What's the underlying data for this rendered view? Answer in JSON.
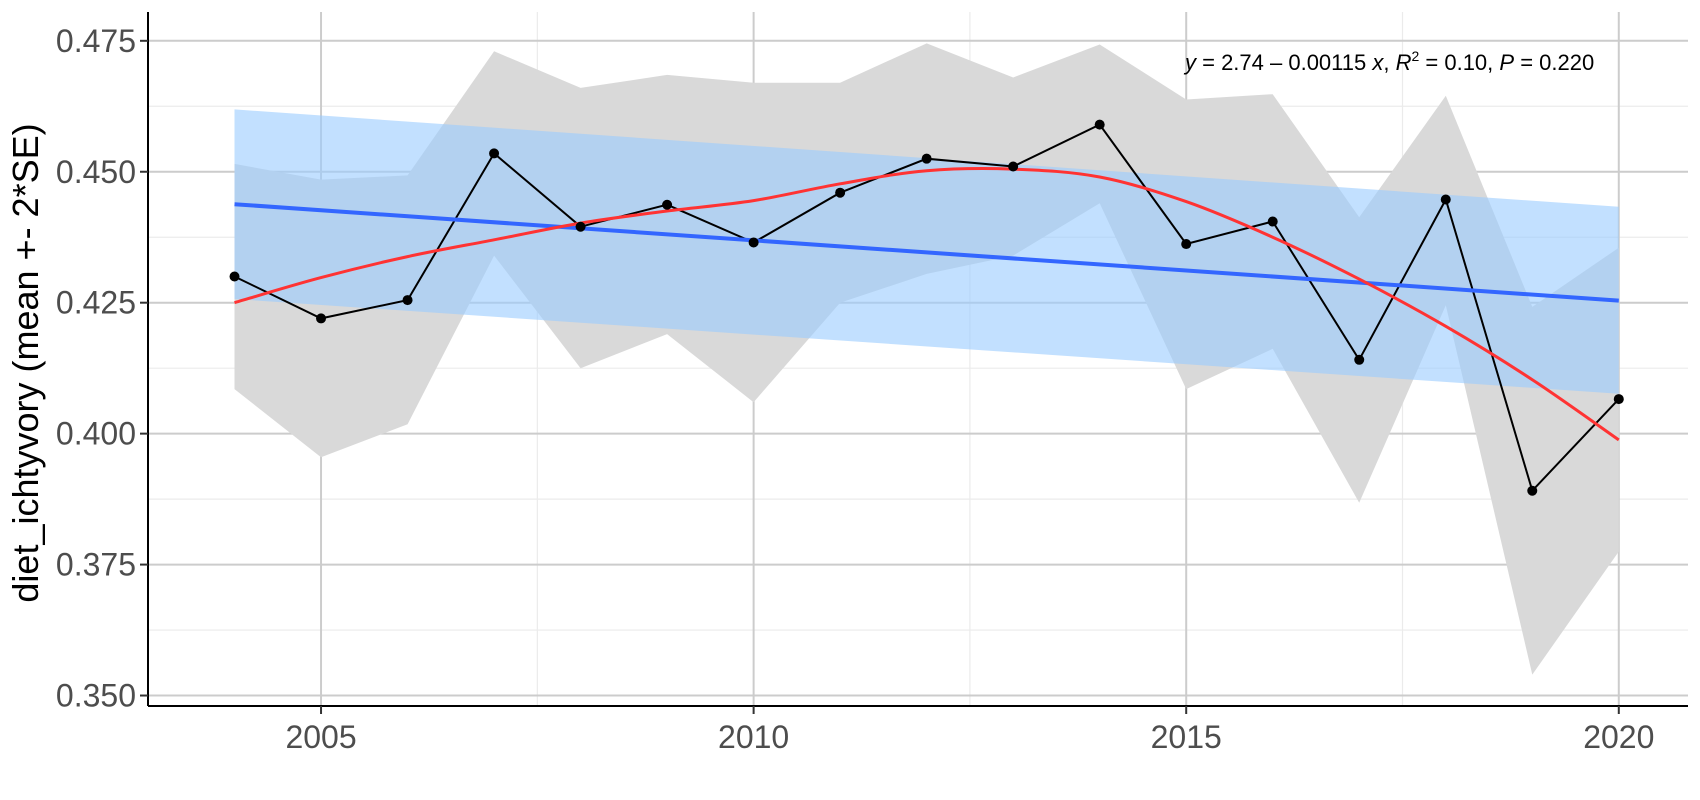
{
  "chart_data": {
    "type": "line",
    "title": "",
    "xlabel": "",
    "ylabel": "diet_ichtyvory (mean +- 2*SE)",
    "xlim": [
      2003.0,
      2020.8
    ],
    "ylim": [
      0.348,
      0.4805
    ],
    "x_ticks": [
      2005,
      2010,
      2015,
      2020
    ],
    "x_tick_labels": [
      "2005",
      "2010",
      "2015",
      "2020"
    ],
    "y_ticks": [
      0.35,
      0.375,
      0.4,
      0.425,
      0.45,
      0.475
    ],
    "y_tick_labels": [
      "0.350",
      "0.375",
      "0.400",
      "0.425",
      "0.450",
      "0.475"
    ],
    "grid": true,
    "annotation": {
      "y_var": "y",
      "equation_rhs": " = 2.74 – 0.00115 ",
      "x_var": "x",
      "sep": ", ",
      "r_var": "R",
      "r_exp": "2",
      "r2_text": " = 0.10, ",
      "p_var": "P",
      "p_text": " = 0.220"
    },
    "series": [
      {
        "kind": "mean",
        "x": [
          2004,
          2005,
          2006,
          2007,
          2008,
          2009,
          2010,
          2011,
          2012,
          2013,
          2014,
          2015,
          2016,
          2017,
          2018,
          2019,
          2020
        ],
        "values": [
          0.43,
          0.422,
          0.4255,
          0.4535,
          0.4395,
          0.4437,
          0.4365,
          0.446,
          0.4525,
          0.451,
          0.459,
          0.4362,
          0.4405,
          0.4141,
          0.4447,
          0.3891,
          0.4066
        ],
        "lower": [
          0.4085,
          0.3955,
          0.4018,
          0.434,
          0.4125,
          0.419,
          0.406,
          0.425,
          0.4305,
          0.434,
          0.444,
          0.4085,
          0.4162,
          0.3868,
          0.4245,
          0.354,
          0.3775
        ],
        "upper": [
          0.4515,
          0.4485,
          0.4493,
          0.473,
          0.466,
          0.4685,
          0.467,
          0.467,
          0.4745,
          0.468,
          0.4743,
          0.4638,
          0.4648,
          0.4413,
          0.4645,
          0.4242,
          0.4355
        ],
        "color": "#000000",
        "band_color": "#d9d9d9"
      },
      {
        "kind": "linear-fit",
        "x": [
          2004,
          2020
        ],
        "values": [
          0.4438,
          0.4254
        ],
        "lower": [
          0.4257,
          0.4076
        ],
        "upper": [
          0.4619,
          0.4433
        ],
        "color": "#3366ff",
        "band_color": "#99ccff"
      },
      {
        "kind": "smooth",
        "x": [
          2004,
          2005,
          2006,
          2007,
          2008,
          2009,
          2010,
          2011,
          2012,
          2013,
          2014,
          2015,
          2016,
          2017,
          2018,
          2019,
          2020
        ],
        "values": [
          0.425,
          0.4298,
          0.4338,
          0.437,
          0.4402,
          0.4425,
          0.4445,
          0.4477,
          0.4502,
          0.4505,
          0.449,
          0.4443,
          0.4375,
          0.4295,
          0.4205,
          0.4103,
          0.3988
        ],
        "color": "#ff3333"
      }
    ]
  }
}
